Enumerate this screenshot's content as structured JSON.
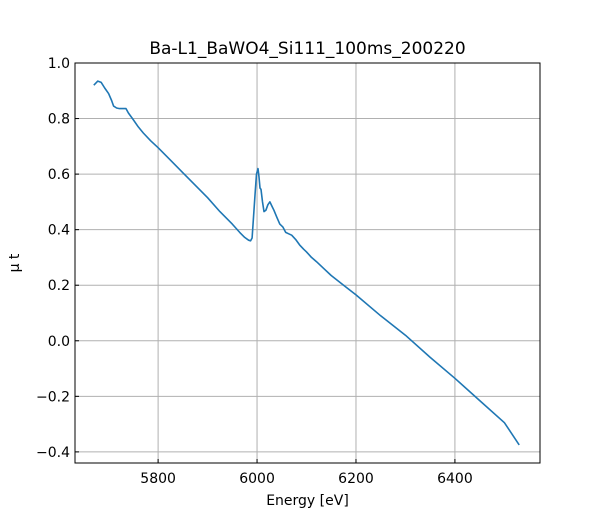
{
  "chart_data": {
    "type": "line",
    "title": "Ba-L1_BaWO4_Si111_100ms_200220",
    "xlabel": "Energy [eV]",
    "ylabel": "μ t",
    "xlim": [
      5632,
      6572
    ],
    "ylim": [
      -0.44,
      1.0
    ],
    "xticks": [
      5800,
      6000,
      6200,
      6400
    ],
    "xtick_labels": [
      "5800",
      "6000",
      "6200",
      "6400"
    ],
    "yticks": [
      1.0,
      0.8,
      0.6,
      0.4,
      0.2,
      0.0,
      -0.2,
      -0.4
    ],
    "ytick_labels": [
      "1.0",
      "0.8",
      "0.6",
      "0.4",
      "0.2",
      "0.0",
      "−0.2",
      "−0.4"
    ],
    "grid": true,
    "series": [
      {
        "name": "mu_t",
        "color": "#1f77b4",
        "x": [
          5670,
          5678,
          5685,
          5692,
          5700,
          5706,
          5710,
          5716,
          5722,
          5735,
          5740,
          5750,
          5760,
          5770,
          5785,
          5800,
          5825,
          5850,
          5875,
          5900,
          5925,
          5950,
          5965,
          5975,
          5983,
          5987,
          5990,
          5993,
          5996,
          5999,
          6002,
          6004,
          6006,
          6008,
          6011,
          6014,
          6018,
          6022,
          6026,
          6030,
          6034,
          6040,
          6046,
          6052,
          6058,
          6064,
          6070,
          6078,
          6086,
          6094,
          6100,
          6110,
          6120,
          6135,
          6150,
          6175,
          6200,
          6250,
          6300,
          6350,
          6400,
          6450,
          6500,
          6530
        ],
        "y": [
          0.92,
          0.935,
          0.93,
          0.91,
          0.89,
          0.865,
          0.845,
          0.838,
          0.836,
          0.836,
          0.82,
          0.795,
          0.77,
          0.748,
          0.72,
          0.695,
          0.65,
          0.605,
          0.56,
          0.515,
          0.465,
          0.42,
          0.39,
          0.372,
          0.362,
          0.36,
          0.37,
          0.45,
          0.53,
          0.6,
          0.62,
          0.59,
          0.55,
          0.545,
          0.5,
          0.465,
          0.47,
          0.49,
          0.5,
          0.485,
          0.47,
          0.445,
          0.42,
          0.41,
          0.39,
          0.385,
          0.38,
          0.365,
          0.345,
          0.33,
          0.32,
          0.3,
          0.285,
          0.26,
          0.235,
          0.2,
          0.165,
          0.09,
          0.02,
          -0.06,
          -0.135,
          -0.215,
          -0.295,
          -0.375
        ]
      }
    ]
  }
}
